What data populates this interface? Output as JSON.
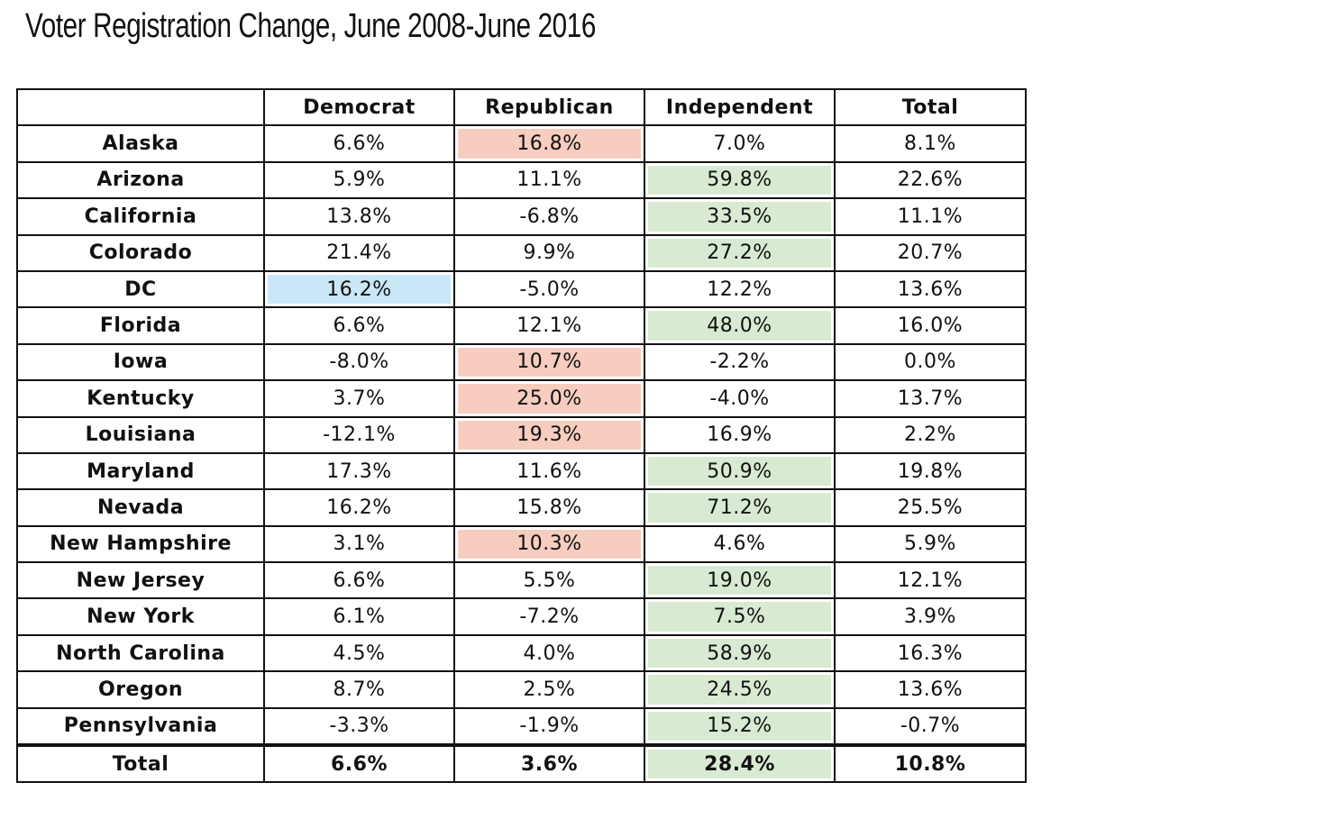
{
  "title": "Voter Registration Change, June 2008-June 2016",
  "table": {
    "header": [
      "Democrat",
      "Republican",
      "Independent",
      "Total"
    ],
    "rows": [
      {
        "label": "Alaska",
        "cells": [
          "6.6%",
          "16.8%",
          "7.0%",
          "8.1%"
        ],
        "highlight": {
          "column": 1,
          "color": "#f6cdbf"
        }
      },
      {
        "label": "Arizona",
        "cells": [
          "5.9%",
          "11.1%",
          "59.8%",
          "22.6%"
        ],
        "highlight": {
          "column": 2,
          "color": "#d9ead3"
        }
      },
      {
        "label": "California",
        "cells": [
          "13.8%",
          "-6.8%",
          "33.5%",
          "11.1%"
        ],
        "highlight": {
          "column": 2,
          "color": "#d9ead3"
        }
      },
      {
        "label": "Colorado",
        "cells": [
          "21.4%",
          "9.9%",
          "27.2%",
          "20.7%"
        ],
        "highlight": {
          "column": 2,
          "color": "#d9ead3"
        }
      },
      {
        "label": "DC",
        "cells": [
          "16.2%",
          "-5.0%",
          "12.2%",
          "13.6%"
        ],
        "highlight": {
          "column": 0,
          "color": "#c9e7f7"
        }
      },
      {
        "label": "Florida",
        "cells": [
          "6.6%",
          "12.1%",
          "48.0%",
          "16.0%"
        ],
        "highlight": {
          "column": 2,
          "color": "#d9ead3"
        }
      },
      {
        "label": "Iowa",
        "cells": [
          "-8.0%",
          "10.7%",
          "-2.2%",
          "0.0%"
        ],
        "highlight": {
          "column": 1,
          "color": "#f6cdbf"
        }
      },
      {
        "label": "Kentucky",
        "cells": [
          "3.7%",
          "25.0%",
          "-4.0%",
          "13.7%"
        ],
        "highlight": {
          "column": 1,
          "color": "#f6cdbf"
        }
      },
      {
        "label": "Louisiana",
        "cells": [
          "-12.1%",
          "19.3%",
          "16.9%",
          "2.2%"
        ],
        "highlight": {
          "column": 1,
          "color": "#f6cdbf"
        }
      },
      {
        "label": "Maryland",
        "cells": [
          "17.3%",
          "11.6%",
          "50.9%",
          "19.8%"
        ],
        "highlight": {
          "column": 2,
          "color": "#d9ead3"
        }
      },
      {
        "label": "Nevada",
        "cells": [
          "16.2%",
          "15.8%",
          "71.2%",
          "25.5%"
        ],
        "highlight": {
          "column": 2,
          "color": "#d9ead3"
        }
      },
      {
        "label": "New Hampshire",
        "cells": [
          "3.1%",
          "10.3%",
          "4.6%",
          "5.9%"
        ],
        "highlight": {
          "column": 1,
          "color": "#f6cdbf"
        }
      },
      {
        "label": "New Jersey",
        "cells": [
          "6.6%",
          "5.5%",
          "19.0%",
          "12.1%"
        ],
        "highlight": {
          "column": 2,
          "color": "#d9ead3"
        }
      },
      {
        "label": "New York",
        "cells": [
          "6.1%",
          "-7.2%",
          "7.5%",
          "3.9%"
        ],
        "highlight": {
          "column": 2,
          "color": "#d9ead3"
        }
      },
      {
        "label": "North Carolina",
        "cells": [
          "4.5%",
          "4.0%",
          "58.9%",
          "16.3%"
        ],
        "highlight": {
          "column": 2,
          "color": "#d9ead3"
        }
      },
      {
        "label": "Oregon",
        "cells": [
          "8.7%",
          "2.5%",
          "24.5%",
          "13.6%"
        ],
        "highlight": {
          "column": 2,
          "color": "#d9ead3"
        }
      },
      {
        "label": "Pennsylvania",
        "cells": [
          "-3.3%",
          "-1.9%",
          "15.2%",
          "-0.7%"
        ],
        "highlight": {
          "column": 2,
          "color": "#d9ead3"
        }
      }
    ],
    "total": {
      "label": "Total",
      "cells": [
        "6.6%",
        "3.6%",
        "28.4%",
        "10.8%"
      ],
      "highlight": {
        "column": 2,
        "color": "#d9ead3"
      }
    }
  }
}
